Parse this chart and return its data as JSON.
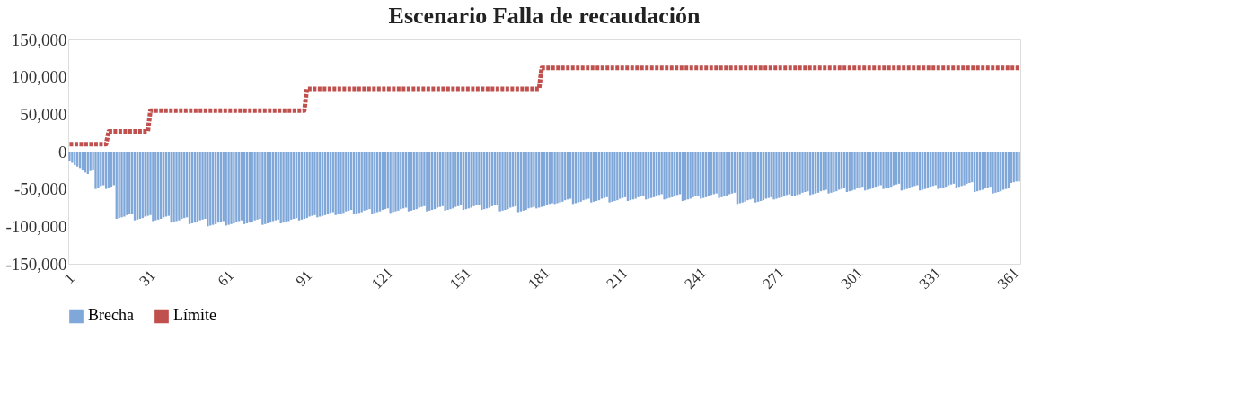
{
  "chart_data": {
    "type": "bar",
    "title": "Escenario Falla de recaudación",
    "categories": [
      "1",
      null,
      null,
      null,
      null,
      null,
      null,
      null,
      null,
      null,
      null,
      null,
      null,
      null,
      null,
      null,
      null,
      null,
      null,
      null,
      null,
      null,
      null,
      null,
      null,
      null,
      null,
      null,
      null,
      null,
      "31",
      null,
      null,
      null,
      null,
      null,
      null,
      null,
      null,
      null,
      null,
      null,
      null,
      null,
      null,
      null,
      null,
      null,
      null,
      null,
      null,
      null,
      null,
      null,
      null,
      null,
      null,
      null,
      null,
      null,
      "61",
      null,
      null,
      null,
      null,
      null,
      null,
      null,
      null,
      null,
      null,
      null,
      null,
      null,
      null,
      null,
      null,
      null,
      null,
      null,
      null,
      null,
      null,
      null,
      null,
      null,
      null,
      null,
      null,
      null,
      "91",
      null,
      null,
      null,
      null,
      null,
      null,
      null,
      null,
      null,
      null,
      null,
      null,
      null,
      null,
      null,
      null,
      null,
      null,
      null,
      null,
      null,
      null,
      null,
      null,
      null,
      null,
      null,
      null,
      null,
      "121",
      null,
      null,
      null,
      null,
      null,
      null,
      null,
      null,
      null,
      null,
      null,
      null,
      null,
      null,
      null,
      null,
      null,
      null,
      null,
      null,
      null,
      null,
      null,
      null,
      null,
      null,
      null,
      null,
      null,
      "151",
      null,
      null,
      null,
      null,
      null,
      null,
      null,
      null,
      null,
      null,
      null,
      null,
      null,
      null,
      null,
      null,
      null,
      null,
      null,
      null,
      null,
      null,
      null,
      null,
      null,
      null,
      null,
      null,
      null,
      "181",
      null,
      null,
      null,
      null,
      null,
      null,
      null,
      null,
      null,
      null,
      null,
      null,
      null,
      null,
      null,
      null,
      null,
      null,
      null,
      null,
      null,
      null,
      null,
      null,
      null,
      null,
      null,
      null,
      null,
      "211",
      null,
      null,
      null,
      null,
      null,
      null,
      null,
      null,
      null,
      null,
      null,
      null,
      null,
      null,
      null,
      null,
      null,
      null,
      null,
      null,
      null,
      null,
      null,
      null,
      null,
      null,
      null,
      null,
      null,
      "241",
      null,
      null,
      null,
      null,
      null,
      null,
      null,
      null,
      null,
      null,
      null,
      null,
      null,
      null,
      null,
      null,
      null,
      null,
      null,
      null,
      null,
      null,
      null,
      null,
      null,
      null,
      null,
      null,
      null,
      "271",
      null,
      null,
      null,
      null,
      null,
      null,
      null,
      null,
      null,
      null,
      null,
      null,
      null,
      null,
      null,
      null,
      null,
      null,
      null,
      null,
      null,
      null,
      null,
      null,
      null,
      null,
      null,
      null,
      null,
      "301",
      null,
      null,
      null,
      null,
      null,
      null,
      null,
      null,
      null,
      null,
      null,
      null,
      null,
      null,
      null,
      null,
      null,
      null,
      null,
      null,
      null,
      null,
      null,
      null,
      null,
      null,
      null,
      null,
      null,
      "331",
      null,
      null,
      null,
      null,
      null,
      null,
      null,
      null,
      null,
      null,
      null,
      null,
      null,
      null,
      null,
      null,
      null,
      null,
      null,
      null,
      null,
      null,
      null,
      null,
      null,
      null,
      null,
      null,
      null,
      "361",
      null,
      null,
      null,
      null
    ],
    "series": [
      {
        "name": "Brecha",
        "color": "#7fa7d9",
        "values": [
          -12000,
          -15000,
          -18000,
          -20000,
          -22000,
          -25000,
          -28000,
          -30000,
          -26000,
          -24000,
          -50000,
          -48000,
          -46000,
          -45000,
          -50000,
          -48000,
          -47000,
          -45000,
          -90000,
          -89000,
          -88000,
          -87000,
          -85000,
          -84000,
          -83000,
          -92000,
          -91000,
          -90000,
          -89000,
          -87000,
          -86000,
          -85000,
          -93000,
          -92000,
          -91000,
          -90000,
          -88000,
          -87000,
          -86000,
          -95000,
          -94000,
          -93000,
          -92000,
          -90000,
          -89000,
          -88000,
          -97000,
          -96000,
          -95000,
          -94000,
          -92000,
          -91000,
          -90000,
          -100000,
          -99000,
          -98000,
          -97000,
          -95000,
          -94000,
          -93000,
          -99000,
          -98000,
          -97000,
          -96000,
          -94000,
          -93000,
          -92000,
          -97000,
          -96000,
          -95000,
          -94000,
          -92000,
          -91000,
          -90000,
          -98000,
          -97000,
          -96000,
          -95000,
          -93000,
          -92000,
          -91000,
          -96000,
          -95000,
          -94000,
          -93000,
          -91000,
          -90000,
          -89000,
          -92000,
          -91000,
          -90000,
          -89000,
          -87000,
          -86000,
          -85000,
          -88000,
          -87000,
          -86000,
          -85000,
          -83000,
          -82000,
          -81000,
          -85000,
          -84000,
          -83000,
          -82000,
          -80000,
          -79000,
          -78000,
          -84000,
          -83000,
          -82000,
          -81000,
          -79000,
          -78000,
          -77000,
          -83000,
          -82000,
          -81000,
          -80000,
          -78000,
          -77000,
          -76000,
          -82000,
          -81000,
          -80000,
          -79000,
          -77000,
          -76000,
          -75000,
          -80000,
          -79000,
          -78000,
          -77000,
          -75000,
          -74000,
          -73000,
          -80000,
          -79000,
          -78000,
          -77000,
          -75000,
          -74000,
          -73000,
          -79000,
          -78000,
          -77000,
          -76000,
          -74000,
          -73000,
          -72000,
          -78000,
          -77000,
          -76000,
          -75000,
          -73000,
          -72000,
          -71000,
          -78000,
          -77000,
          -76000,
          -75000,
          -73000,
          -72000,
          -71000,
          -80000,
          -79000,
          -78000,
          -77000,
          -75000,
          -74000,
          -73000,
          -81000,
          -80000,
          -79000,
          -78000,
          -76000,
          -75000,
          -74000,
          -76000,
          -75000,
          -74000,
          -73000,
          -71000,
          -70000,
          -69000,
          -70000,
          -69000,
          -68000,
          -67000,
          -65000,
          -64000,
          -63000,
          -70000,
          -69000,
          -68000,
          -67000,
          -65000,
          -64000,
          -63000,
          -68000,
          -67000,
          -66000,
          -65000,
          -63000,
          -62000,
          -61000,
          -68000,
          -67000,
          -66000,
          -65000,
          -63000,
          -62000,
          -61000,
          -66000,
          -65000,
          -64000,
          -63000,
          -61000,
          -60000,
          -59000,
          -64000,
          -63000,
          -62000,
          -61000,
          -59000,
          -58000,
          -57000,
          -64000,
          -63000,
          -62000,
          -61000,
          -59000,
          -58000,
          -57000,
          -66000,
          -65000,
          -64000,
          -63000,
          -61000,
          -60000,
          -59000,
          -63000,
          -62000,
          -61000,
          -60000,
          -58000,
          -57000,
          -56000,
          -62000,
          -61000,
          -60000,
          -59000,
          -57000,
          -56000,
          -55000,
          -70000,
          -69000,
          -68000,
          -67000,
          -65000,
          -64000,
          -63000,
          -68000,
          -67000,
          -66000,
          -65000,
          -63000,
          -62000,
          -61000,
          -64000,
          -63000,
          -62000,
          -61000,
          -59000,
          -58000,
          -57000,
          -60000,
          -59000,
          -58000,
          -57000,
          -55000,
          -54000,
          -53000,
          -58000,
          -57000,
          -56000,
          -55000,
          -53000,
          -52000,
          -51000,
          -56000,
          -55000,
          -54000,
          -53000,
          -51000,
          -50000,
          -49000,
          -54000,
          -53000,
          -52000,
          -51000,
          -49000,
          -48000,
          -47000,
          -52000,
          -51000,
          -50000,
          -49000,
          -47000,
          -46000,
          -45000,
          -50000,
          -49000,
          -48000,
          -47000,
          -45000,
          -44000,
          -43000,
          -52000,
          -51000,
          -50000,
          -49000,
          -47000,
          -46000,
          -45000,
          -52000,
          -51000,
          -50000,
          -49000,
          -47000,
          -46000,
          -45000,
          -50000,
          -49000,
          -48000,
          -47000,
          -45000,
          -44000,
          -43000,
          -48000,
          -47000,
          -46000,
          -45000,
          -43000,
          -42000,
          -41000,
          -54000,
          -53000,
          -52000,
          -51000,
          -49000,
          -48000,
          -47000,
          -56000,
          -55000,
          -54000,
          -53000,
          -51000,
          -50000,
          -49000,
          -42000,
          -41000,
          -40000,
          -40000
        ]
      },
      {
        "name": "Límite",
        "type": "line",
        "color": "#c0504d",
        "line_style": "dashed",
        "values": [
          10000,
          10000,
          10000,
          10000,
          10000,
          10000,
          10000,
          10000,
          10000,
          10000,
          10000,
          10000,
          10000,
          10000,
          10000,
          27000,
          27000,
          27000,
          27000,
          27000,
          27000,
          27000,
          27000,
          27000,
          27000,
          27000,
          27000,
          27000,
          27000,
          27000,
          27000,
          55000,
          55000,
          55000,
          55000,
          55000,
          55000,
          55000,
          55000,
          55000,
          55000,
          55000,
          55000,
          55000,
          55000,
          55000,
          55000,
          55000,
          55000,
          55000,
          55000,
          55000,
          55000,
          55000,
          55000,
          55000,
          55000,
          55000,
          55000,
          55000,
          55000,
          55000,
          55000,
          55000,
          55000,
          55000,
          55000,
          55000,
          55000,
          55000,
          55000,
          55000,
          55000,
          55000,
          55000,
          55000,
          55000,
          55000,
          55000,
          55000,
          55000,
          55000,
          55000,
          55000,
          55000,
          55000,
          55000,
          55000,
          55000,
          55000,
          55000,
          84000,
          84000,
          84000,
          84000,
          84000,
          84000,
          84000,
          84000,
          84000,
          84000,
          84000,
          84000,
          84000,
          84000,
          84000,
          84000,
          84000,
          84000,
          84000,
          84000,
          84000,
          84000,
          84000,
          84000,
          84000,
          84000,
          84000,
          84000,
          84000,
          84000,
          84000,
          84000,
          84000,
          84000,
          84000,
          84000,
          84000,
          84000,
          84000,
          84000,
          84000,
          84000,
          84000,
          84000,
          84000,
          84000,
          84000,
          84000,
          84000,
          84000,
          84000,
          84000,
          84000,
          84000,
          84000,
          84000,
          84000,
          84000,
          84000,
          84000,
          84000,
          84000,
          84000,
          84000,
          84000,
          84000,
          84000,
          84000,
          84000,
          84000,
          84000,
          84000,
          84000,
          84000,
          84000,
          84000,
          84000,
          84000,
          84000,
          84000,
          84000,
          84000,
          84000,
          84000,
          84000,
          84000,
          84000,
          84000,
          84000,
          84000,
          112000,
          112000,
          112000,
          112000,
          112000,
          112000,
          112000,
          112000,
          112000,
          112000,
          112000,
          112000,
          112000,
          112000,
          112000,
          112000,
          112000,
          112000,
          112000,
          112000,
          112000,
          112000,
          112000,
          112000,
          112000,
          112000,
          112000,
          112000,
          112000,
          112000,
          112000,
          112000,
          112000,
          112000,
          112000,
          112000,
          112000,
          112000,
          112000,
          112000,
          112000,
          112000,
          112000,
          112000,
          112000,
          112000,
          112000,
          112000,
          112000,
          112000,
          112000,
          112000,
          112000,
          112000,
          112000,
          112000,
          112000,
          112000,
          112000,
          112000,
          112000,
          112000,
          112000,
          112000,
          112000,
          112000,
          112000,
          112000,
          112000,
          112000,
          112000,
          112000,
          112000,
          112000,
          112000,
          112000,
          112000,
          112000,
          112000,
          112000,
          112000,
          112000,
          112000,
          112000,
          112000,
          112000,
          112000,
          112000,
          112000,
          112000,
          112000,
          112000,
          112000,
          112000,
          112000,
          112000,
          112000,
          112000,
          112000,
          112000,
          112000,
          112000,
          112000,
          112000,
          112000,
          112000,
          112000,
          112000,
          112000,
          112000,
          112000,
          112000,
          112000,
          112000,
          112000,
          112000,
          112000,
          112000,
          112000,
          112000,
          112000,
          112000,
          112000,
          112000,
          112000,
          112000,
          112000,
          112000,
          112000,
          112000,
          112000,
          112000,
          112000,
          112000,
          112000,
          112000,
          112000,
          112000,
          112000,
          112000,
          112000,
          112000,
          112000,
          112000,
          112000,
          112000,
          112000,
          112000,
          112000,
          112000,
          112000,
          112000,
          112000,
          112000,
          112000,
          112000,
          112000,
          112000,
          112000,
          112000,
          112000,
          112000,
          112000,
          112000,
          112000,
          112000,
          112000,
          112000,
          112000,
          112000,
          112000,
          112000,
          112000,
          112000,
          112000,
          112000,
          112000,
          112000,
          112000,
          112000,
          112000,
          112000,
          112000,
          112000
        ]
      }
    ],
    "ylim": [
      -150000,
      150000
    ],
    "yticks": [
      {
        "value": -150000,
        "label": "-150,000"
      },
      {
        "value": -100000,
        "label": "-100,000"
      },
      {
        "value": -50000,
        "label": "-50,000"
      },
      0,
      {
        "value": 50000,
        "label": "50,000"
      },
      {
        "value": 100000,
        "label": "100,000"
      },
      {
        "value": 150000,
        "label": "150,000"
      }
    ],
    "grid": false,
    "legend": "bottom"
  }
}
